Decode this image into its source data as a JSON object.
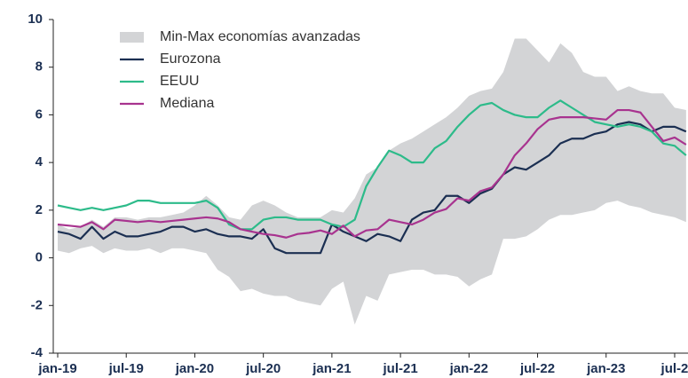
{
  "chart_data": {
    "type": "line",
    "categories": [
      "jan-19",
      null,
      null,
      null,
      null,
      null,
      "jul-19",
      null,
      null,
      null,
      null,
      null,
      "jan-20",
      null,
      null,
      null,
      null,
      null,
      "jul-20",
      null,
      null,
      null,
      null,
      null,
      "jan-21",
      null,
      null,
      null,
      null,
      null,
      "jul-21",
      null,
      null,
      null,
      null,
      null,
      "jan-22",
      null,
      null,
      null,
      null,
      null,
      "jul-22",
      null,
      null,
      null,
      null,
      null,
      "jan-23",
      null,
      null,
      null,
      null,
      null,
      "jul-2",
      null
    ],
    "band": {
      "name": "Min-Max economías avanzadas",
      "color": "#d3d4d6",
      "max": [
        1.4,
        1.2,
        1.3,
        1.6,
        1.3,
        1.7,
        1.7,
        1.6,
        1.7,
        1.7,
        1.8,
        1.9,
        2.2,
        2.6,
        2.2,
        1.7,
        1.6,
        2.2,
        2.4,
        2.2,
        1.9,
        1.7,
        1.7,
        1.7,
        2.0,
        1.9,
        2.5,
        3.5,
        3.8,
        4.5,
        4.8,
        5.0,
        5.3,
        5.6,
        5.9,
        6.3,
        6.8,
        7.0,
        7.1,
        7.8,
        9.2,
        9.2,
        8.7,
        8.2,
        9.0,
        8.6,
        7.8,
        7.6,
        7.6,
        7.0,
        7.2,
        7.0,
        6.9,
        6.9,
        6.3,
        6.2
      ],
      "min": [
        0.3,
        0.2,
        0.4,
        0.5,
        0.2,
        0.4,
        0.3,
        0.3,
        0.4,
        0.2,
        0.4,
        0.4,
        0.3,
        0.2,
        -0.5,
        -0.8,
        -1.4,
        -1.3,
        -1.5,
        -1.6,
        -1.6,
        -1.8,
        -1.9,
        -2.0,
        -1.3,
        -1.0,
        -2.8,
        -1.6,
        -1.8,
        -0.7,
        -0.6,
        -0.5,
        -0.5,
        -0.7,
        -0.7,
        -0.8,
        -1.2,
        -0.9,
        -0.7,
        0.8,
        0.8,
        0.9,
        1.2,
        1.6,
        1.8,
        1.8,
        1.9,
        2.0,
        2.3,
        2.4,
        2.2,
        2.1,
        1.9,
        1.8,
        1.7,
        1.5
      ]
    },
    "series": [
      {
        "name": "Eurozona",
        "color": "#1b2f52",
        "values": [
          1.1,
          1.0,
          0.8,
          1.3,
          0.8,
          1.1,
          0.9,
          0.9,
          1.0,
          1.1,
          1.3,
          1.3,
          1.1,
          1.2,
          1.0,
          0.9,
          0.9,
          0.8,
          1.2,
          0.4,
          0.2,
          0.2,
          0.2,
          0.2,
          1.4,
          1.1,
          0.9,
          0.7,
          1.0,
          0.9,
          0.7,
          1.6,
          1.9,
          2.0,
          2.6,
          2.6,
          2.3,
          2.7,
          2.9,
          3.5,
          3.8,
          3.7,
          4.0,
          4.3,
          4.8,
          5.0,
          5.0,
          5.2,
          5.3,
          5.6,
          5.7,
          5.6,
          5.3,
          5.5,
          5.5,
          5.3
        ]
      },
      {
        "name": "EEUU",
        "color": "#2dbb8a",
        "values": [
          2.2,
          2.1,
          2.0,
          2.1,
          2.0,
          2.1,
          2.2,
          2.4,
          2.4,
          2.3,
          2.3,
          2.3,
          2.3,
          2.4,
          2.1,
          1.4,
          1.2,
          1.2,
          1.6,
          1.7,
          1.7,
          1.6,
          1.6,
          1.6,
          1.4,
          1.3,
          1.6,
          3.0,
          3.8,
          4.5,
          4.3,
          4.0,
          4.0,
          4.6,
          4.9,
          5.5,
          6.0,
          6.4,
          6.5,
          6.2,
          6.0,
          5.9,
          5.9,
          6.3,
          6.6,
          6.3,
          6.0,
          5.7,
          5.6,
          5.5,
          5.6,
          5.5,
          5.3,
          4.8,
          4.7,
          4.3
        ]
      },
      {
        "name": "Mediana",
        "color": "#a8338f",
        "values": [
          1.4,
          1.35,
          1.3,
          1.5,
          1.2,
          1.6,
          1.55,
          1.5,
          1.55,
          1.5,
          1.55,
          1.6,
          1.65,
          1.7,
          1.65,
          1.5,
          1.2,
          1.1,
          1.0,
          0.95,
          0.85,
          1.0,
          1.05,
          1.15,
          1.0,
          1.35,
          0.9,
          1.15,
          1.2,
          1.6,
          1.5,
          1.4,
          1.6,
          1.9,
          2.05,
          2.5,
          2.4,
          2.8,
          2.95,
          3.5,
          4.3,
          4.8,
          5.4,
          5.8,
          5.9,
          5.9,
          5.9,
          5.85,
          5.8,
          6.2,
          6.2,
          6.1,
          5.5,
          4.9,
          5.05,
          4.75
        ]
      }
    ],
    "ylim": [
      -4,
      10
    ],
    "yticks": [
      -4,
      -2,
      0,
      2,
      4,
      6,
      8,
      10
    ],
    "legend": "upper left"
  }
}
